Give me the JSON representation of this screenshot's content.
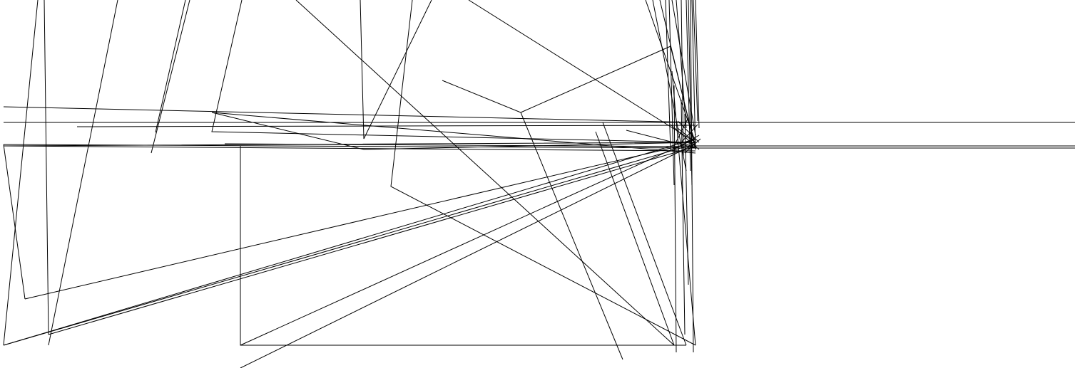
{
  "canvas": {
    "background": "#ffffff",
    "stroke_color": "#000000"
  }
}
